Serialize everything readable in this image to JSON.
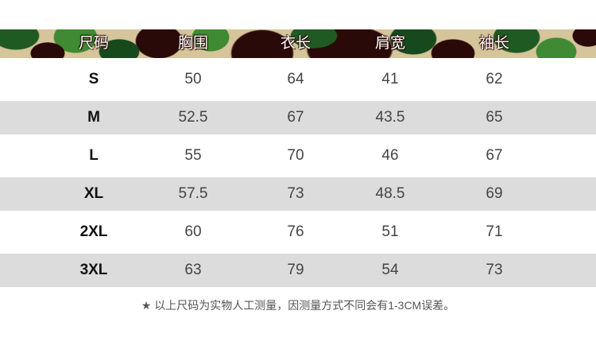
{
  "table": {
    "headers": [
      "尺码",
      "胸围",
      "衣长",
      "肩宽",
      "袖长"
    ],
    "rows": [
      [
        "S",
        "50",
        "64",
        "41",
        "62"
      ],
      [
        "M",
        "52.5",
        "67",
        "43.5",
        "65"
      ],
      [
        "L",
        "55",
        "70",
        "46",
        "67"
      ],
      [
        "XL",
        "57.5",
        "73",
        "48.5",
        "69"
      ],
      [
        "2XL",
        "60",
        "76",
        "51",
        "71"
      ],
      [
        "3XL",
        "63",
        "79",
        "54",
        "73"
      ]
    ]
  },
  "note": "★ 以上尺码为实物人工测量，因测量方式不同会有1-3CM误差。",
  "colors": {
    "stripe": "#dcdcdc",
    "camo_sand": "#d6c49a",
    "camo_green": "#1f5a22",
    "camo_brown": "#2a0a08"
  }
}
